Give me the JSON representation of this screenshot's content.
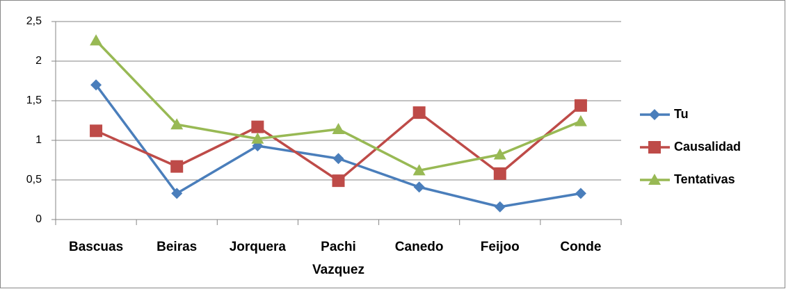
{
  "chart_data": {
    "type": "line",
    "categories": [
      "Bascuas",
      "Beiras",
      "Jorquera",
      "Pachi Vazquez",
      "Canedo",
      "Feijoo",
      "Conde"
    ],
    "series": [
      {
        "name": "Tu",
        "color": "#4a7ebb",
        "marker": "diamond",
        "values": [
          1.7,
          0.33,
          0.93,
          0.77,
          0.41,
          0.16,
          0.33
        ]
      },
      {
        "name": "Causalidad",
        "color": "#be4b48",
        "marker": "square",
        "values": [
          1.12,
          0.67,
          1.17,
          0.49,
          1.35,
          0.58,
          1.44
        ]
      },
      {
        "name": "Tentativas",
        "color": "#98b954",
        "marker": "triangle",
        "values": [
          2.26,
          1.2,
          1.02,
          1.14,
          0.62,
          0.82,
          1.24
        ]
      }
    ],
    "ylim": [
      0,
      2.5
    ],
    "yticks": [
      0,
      {
        "value": 0.5,
        "label": "0,5"
      },
      1,
      {
        "value": 1.5,
        "label": "1,5"
      },
      2,
      {
        "value": 2.5,
        "label": "2,5"
      }
    ],
    "grid": true,
    "legend": "right"
  }
}
